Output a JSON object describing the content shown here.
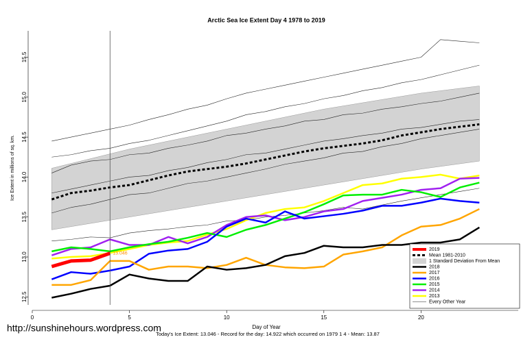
{
  "chart_data": {
    "type": "line",
    "title": "Arctic Sea Ice Extent Day 4 1978 to 2019",
    "x_label": "Day of Year",
    "y_label": "Ice Extent in millions of sq. km.",
    "caption": "Today's Ice Extent: 13.046  - Record for the day: 14.922 which occurred on 1979 1 4  - Mean: 13.87",
    "source_url": "http://sunshinehours.wordpress.com",
    "current_day": 4,
    "xlim": [
      0,
      25
    ],
    "ylim": [
      12.4,
      15.83
    ],
    "xticks": [
      0,
      5,
      10,
      15,
      20
    ],
    "yticks": [
      12.5,
      {
        "value": 13,
        "label": "13.0"
      },
      13.5,
      {
        "value": 14,
        "label": "14.0"
      },
      14.5,
      {
        "value": 15,
        "label": "15.0"
      },
      15.5
    ],
    "x": [
      1,
      2,
      3,
      4,
      5,
      6,
      7,
      8,
      9,
      10,
      11,
      12,
      13,
      14,
      15,
      16,
      17,
      18,
      19,
      20,
      21,
      22,
      23
    ],
    "std_band": {
      "name": "1 Standard Deviation From Mean",
      "color": "#d3d3d3",
      "days": [
        1,
        5,
        10,
        15,
        20,
        23
      ],
      "upper": [
        14.11,
        14.35,
        14.6,
        14.85,
        15.05,
        15.14
      ],
      "lower": [
        13.34,
        13.5,
        13.7,
        13.9,
        14.1,
        14.2
      ]
    },
    "other_years": {
      "name": "Every Other Year",
      "color": "#222222",
      "lines": [
        [
          14.25,
          14.28,
          14.33,
          14.36,
          14.42,
          14.46,
          14.52,
          14.58,
          14.64,
          14.7,
          14.78,
          14.82,
          14.88,
          14.92,
          14.98,
          15.02,
          15.08,
          15.12,
          15.18,
          15.22,
          15.28,
          15.34,
          15.4
        ],
        [
          13.55,
          13.62,
          13.66,
          13.72,
          13.78,
          13.8,
          13.86,
          13.92,
          13.95,
          14.0,
          14.05,
          14.1,
          14.16,
          14.2,
          14.24,
          14.3,
          14.32,
          14.38,
          14.42,
          14.48,
          14.52,
          14.56,
          14.6
        ],
        [
          13.2,
          13.22,
          13.25,
          13.24,
          13.3,
          13.33,
          13.35,
          13.38,
          13.4,
          13.45,
          13.46,
          13.5,
          13.52,
          13.55,
          13.58,
          13.62,
          13.6,
          13.65,
          13.7,
          13.74,
          13.78,
          13.82,
          13.86
        ],
        [
          14.05,
          14.15,
          14.2,
          14.22,
          14.28,
          14.3,
          14.36,
          14.4,
          14.45,
          14.52,
          14.55,
          14.6,
          14.64,
          14.7,
          14.72,
          14.78,
          14.8,
          14.85,
          14.88,
          14.92,
          14.95,
          15.0,
          15.05
        ],
        [
          14.45,
          14.5,
          14.55,
          14.6,
          14.65,
          14.72,
          14.78,
          14.85,
          14.9,
          14.98,
          15.05,
          15.1,
          15.15,
          15.2,
          15.25,
          15.3,
          15.35,
          15.4,
          15.45,
          15.5,
          15.72,
          15.7,
          15.68
        ],
        [
          13.8,
          13.85,
          13.9,
          13.95,
          14.0,
          14.02,
          14.08,
          14.12,
          14.18,
          14.22,
          14.28,
          14.3,
          14.35,
          14.4,
          14.45,
          14.48,
          14.52,
          14.55,
          14.6,
          14.62,
          14.66,
          14.7,
          14.72
        ]
      ]
    },
    "series": [
      {
        "name": "2019",
        "color": "#ff0000",
        "width": 5,
        "values": [
          12.88,
          12.95,
          12.96,
          13.046,
          null,
          null,
          null,
          null,
          null,
          null,
          null,
          null,
          null,
          null,
          null,
          null,
          null,
          null,
          null,
          null,
          null,
          null,
          null
        ],
        "value_labels": [
          null,
          null,
          null,
          "13.046",
          null,
          null,
          null,
          null,
          null,
          null,
          null,
          null,
          null,
          null,
          null,
          null,
          null,
          null,
          null,
          null,
          null,
          null,
          null
        ]
      },
      {
        "name": "Mean 1981-2010",
        "color": "#000000",
        "width": 3,
        "dashed": true,
        "values": [
          13.72,
          13.8,
          13.83,
          13.87,
          13.9,
          13.96,
          14.02,
          14.07,
          14.1,
          14.13,
          14.17,
          14.22,
          14.27,
          14.32,
          14.36,
          14.39,
          14.42,
          14.46,
          14.52,
          14.56,
          14.6,
          14.63,
          14.66
        ]
      },
      {
        "name": "2018",
        "color": "#000000",
        "width": 2.5,
        "values": [
          12.49,
          12.54,
          12.6,
          12.64,
          12.78,
          12.73,
          12.7,
          12.7,
          12.88,
          12.84,
          12.86,
          12.9,
          13.01,
          13.05,
          13.14,
          13.12,
          13.12,
          13.15,
          13.15,
          13.18,
          13.18,
          13.22,
          13.37
        ]
      },
      {
        "name": "2017",
        "color": "#ffa500",
        "width": 2.5,
        "values": [
          12.65,
          12.65,
          12.71,
          12.95,
          12.95,
          12.84,
          12.88,
          12.88,
          12.86,
          12.9,
          12.99,
          12.9,
          12.87,
          12.86,
          12.88,
          13.03,
          13.07,
          13.12,
          13.27,
          13.38,
          13.4,
          13.48,
          13.6
        ]
      },
      {
        "name": "2016",
        "color": "#0000ff",
        "width": 2.5,
        "values": [
          12.72,
          12.81,
          12.79,
          12.83,
          12.88,
          13.04,
          13.08,
          13.1,
          13.19,
          13.38,
          13.48,
          13.43,
          13.57,
          13.48,
          13.51,
          13.54,
          13.58,
          13.64,
          13.64,
          13.68,
          13.73,
          13.7,
          13.68
        ]
      },
      {
        "name": "2015",
        "color": "#00ee00",
        "width": 2.5,
        "values": [
          13.07,
          13.12,
          13.1,
          13.07,
          13.12,
          13.16,
          13.19,
          13.24,
          13.3,
          13.25,
          13.34,
          13.4,
          13.48,
          13.56,
          13.66,
          13.77,
          13.78,
          13.78,
          13.84,
          13.81,
          13.75,
          13.87,
          13.93
        ]
      },
      {
        "name": "2014",
        "color": "#a020f0",
        "width": 2.5,
        "values": [
          13.02,
          13.1,
          13.12,
          13.22,
          13.15,
          13.15,
          13.25,
          13.17,
          13.25,
          13.4,
          13.5,
          13.52,
          13.46,
          13.5,
          13.57,
          13.6,
          13.7,
          13.74,
          13.78,
          13.84,
          13.86,
          13.98,
          13.99
        ]
      },
      {
        "name": "2013",
        "color": "#ffff00",
        "width": 2.5,
        "values": [
          12.98,
          13.0,
          13.01,
          13.05,
          13.1,
          13.15,
          13.18,
          13.2,
          13.28,
          13.35,
          13.46,
          13.55,
          13.6,
          13.62,
          13.7,
          13.8,
          13.9,
          13.92,
          13.98,
          14.0,
          14.03,
          13.98,
          14.02
        ]
      }
    ]
  }
}
